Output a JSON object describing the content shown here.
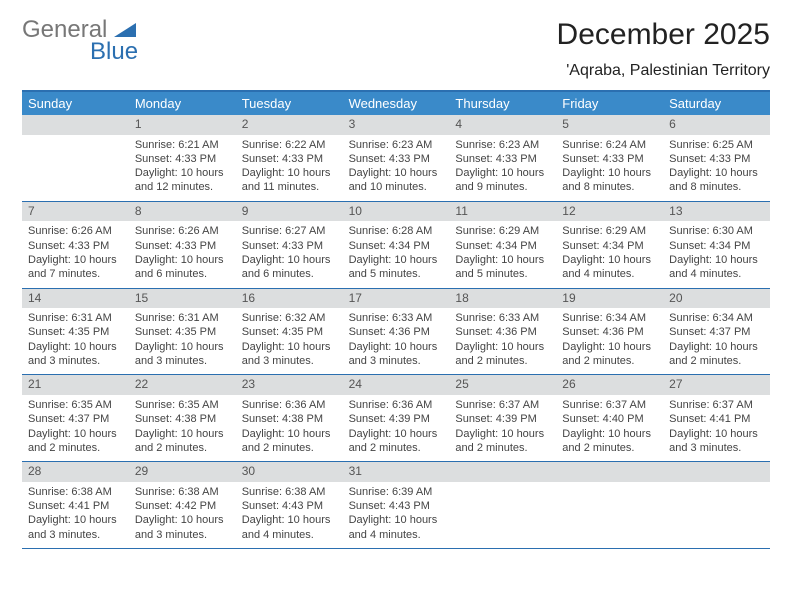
{
  "logo": {
    "word1": "General",
    "word2": "Blue"
  },
  "header": {
    "month": "December 2025",
    "location": "'Aqraba, Palestinian Territory"
  },
  "colors": {
    "header_bar": "#3a8ac9",
    "rule_line": "#2b6fb0",
    "cell_header_bg": "#dcdedf",
    "logo_grey": "#777777",
    "logo_blue": "#2b6fb0",
    "text": "#222222",
    "subtext": "#444444",
    "background": "#ffffff"
  },
  "typography": {
    "title_fontsize_pt": 22,
    "location_fontsize_pt": 12,
    "dow_fontsize_pt": 10,
    "cell_fontsize_pt": 8,
    "font_family": "Arial"
  },
  "calendar": {
    "columns": [
      "Sunday",
      "Monday",
      "Tuesday",
      "Wednesday",
      "Thursday",
      "Friday",
      "Saturday"
    ],
    "first_weekday_index": 1,
    "days": [
      {
        "n": 1,
        "sunrise": "6:21 AM",
        "sunset": "4:33 PM",
        "daylight": "10 hours and 12 minutes."
      },
      {
        "n": 2,
        "sunrise": "6:22 AM",
        "sunset": "4:33 PM",
        "daylight": "10 hours and 11 minutes."
      },
      {
        "n": 3,
        "sunrise": "6:23 AM",
        "sunset": "4:33 PM",
        "daylight": "10 hours and 10 minutes."
      },
      {
        "n": 4,
        "sunrise": "6:23 AM",
        "sunset": "4:33 PM",
        "daylight": "10 hours and 9 minutes."
      },
      {
        "n": 5,
        "sunrise": "6:24 AM",
        "sunset": "4:33 PM",
        "daylight": "10 hours and 8 minutes."
      },
      {
        "n": 6,
        "sunrise": "6:25 AM",
        "sunset": "4:33 PM",
        "daylight": "10 hours and 8 minutes."
      },
      {
        "n": 7,
        "sunrise": "6:26 AM",
        "sunset": "4:33 PM",
        "daylight": "10 hours and 7 minutes."
      },
      {
        "n": 8,
        "sunrise": "6:26 AM",
        "sunset": "4:33 PM",
        "daylight": "10 hours and 6 minutes."
      },
      {
        "n": 9,
        "sunrise": "6:27 AM",
        "sunset": "4:33 PM",
        "daylight": "10 hours and 6 minutes."
      },
      {
        "n": 10,
        "sunrise": "6:28 AM",
        "sunset": "4:34 PM",
        "daylight": "10 hours and 5 minutes."
      },
      {
        "n": 11,
        "sunrise": "6:29 AM",
        "sunset": "4:34 PM",
        "daylight": "10 hours and 5 minutes."
      },
      {
        "n": 12,
        "sunrise": "6:29 AM",
        "sunset": "4:34 PM",
        "daylight": "10 hours and 4 minutes."
      },
      {
        "n": 13,
        "sunrise": "6:30 AM",
        "sunset": "4:34 PM",
        "daylight": "10 hours and 4 minutes."
      },
      {
        "n": 14,
        "sunrise": "6:31 AM",
        "sunset": "4:35 PM",
        "daylight": "10 hours and 3 minutes."
      },
      {
        "n": 15,
        "sunrise": "6:31 AM",
        "sunset": "4:35 PM",
        "daylight": "10 hours and 3 minutes."
      },
      {
        "n": 16,
        "sunrise": "6:32 AM",
        "sunset": "4:35 PM",
        "daylight": "10 hours and 3 minutes."
      },
      {
        "n": 17,
        "sunrise": "6:33 AM",
        "sunset": "4:36 PM",
        "daylight": "10 hours and 3 minutes."
      },
      {
        "n": 18,
        "sunrise": "6:33 AM",
        "sunset": "4:36 PM",
        "daylight": "10 hours and 2 minutes."
      },
      {
        "n": 19,
        "sunrise": "6:34 AM",
        "sunset": "4:36 PM",
        "daylight": "10 hours and 2 minutes."
      },
      {
        "n": 20,
        "sunrise": "6:34 AM",
        "sunset": "4:37 PM",
        "daylight": "10 hours and 2 minutes."
      },
      {
        "n": 21,
        "sunrise": "6:35 AM",
        "sunset": "4:37 PM",
        "daylight": "10 hours and 2 minutes."
      },
      {
        "n": 22,
        "sunrise": "6:35 AM",
        "sunset": "4:38 PM",
        "daylight": "10 hours and 2 minutes."
      },
      {
        "n": 23,
        "sunrise": "6:36 AM",
        "sunset": "4:38 PM",
        "daylight": "10 hours and 2 minutes."
      },
      {
        "n": 24,
        "sunrise": "6:36 AM",
        "sunset": "4:39 PM",
        "daylight": "10 hours and 2 minutes."
      },
      {
        "n": 25,
        "sunrise": "6:37 AM",
        "sunset": "4:39 PM",
        "daylight": "10 hours and 2 minutes."
      },
      {
        "n": 26,
        "sunrise": "6:37 AM",
        "sunset": "4:40 PM",
        "daylight": "10 hours and 2 minutes."
      },
      {
        "n": 27,
        "sunrise": "6:37 AM",
        "sunset": "4:41 PM",
        "daylight": "10 hours and 3 minutes."
      },
      {
        "n": 28,
        "sunrise": "6:38 AM",
        "sunset": "4:41 PM",
        "daylight": "10 hours and 3 minutes."
      },
      {
        "n": 29,
        "sunrise": "6:38 AM",
        "sunset": "4:42 PM",
        "daylight": "10 hours and 3 minutes."
      },
      {
        "n": 30,
        "sunrise": "6:38 AM",
        "sunset": "4:43 PM",
        "daylight": "10 hours and 4 minutes."
      },
      {
        "n": 31,
        "sunrise": "6:39 AM",
        "sunset": "4:43 PM",
        "daylight": "10 hours and 4 minutes."
      }
    ],
    "labels": {
      "sunrise": "Sunrise:",
      "sunset": "Sunset:",
      "daylight": "Daylight:"
    }
  }
}
